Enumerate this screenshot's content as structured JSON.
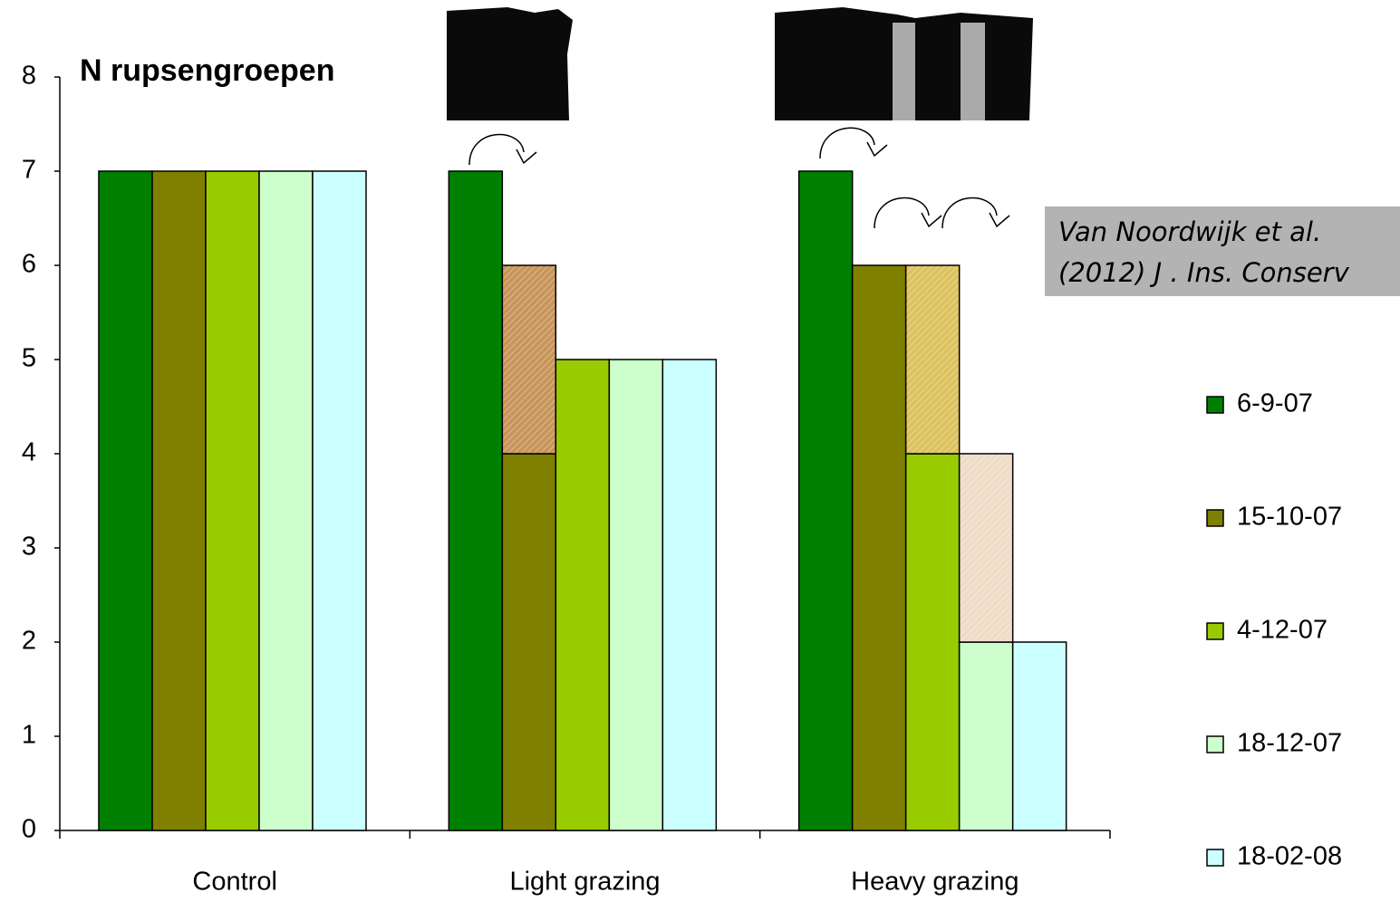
{
  "chart_data": {
    "type": "bar",
    "title": "N rupsengroepen",
    "annotation": [
      "Van Noordwijk et al.",
      "(2012) J . Ins. Conserv"
    ],
    "categories": [
      "Control",
      "Light grazing",
      "Heavy grazing"
    ],
    "series": [
      {
        "name": "6-9-07",
        "color": "#008000",
        "values": [
          7,
          7,
          7
        ],
        "solid_values": [
          7,
          7,
          7
        ],
        "hatch_color": "#008000"
      },
      {
        "name": "15-10-07",
        "color": "#808000",
        "values": [
          7,
          6,
          6
        ],
        "solid_values": [
          7,
          4,
          6
        ],
        "hatch_color": "#c8955a"
      },
      {
        "name": "4-12-07",
        "color": "#99cc00",
        "values": [
          7,
          5,
          6
        ],
        "solid_values": [
          7,
          5,
          4
        ],
        "hatch_color": "#dcc25e"
      },
      {
        "name": "18-12-07",
        "color": "#ccffcc",
        "values": [
          7,
          5,
          4
        ],
        "solid_values": [
          7,
          5,
          2
        ],
        "hatch_color": "#efdcc6"
      },
      {
        "name": "18-02-08",
        "color": "#ccffff",
        "values": [
          7,
          5,
          2
        ],
        "solid_values": [
          7,
          5,
          2
        ],
        "hatch_color": "#ccffff"
      }
    ],
    "ylim": [
      0,
      8
    ],
    "yticks": [
      0,
      1,
      2,
      3,
      4,
      5,
      6,
      7,
      8
    ],
    "grid": false,
    "legend": "right"
  }
}
